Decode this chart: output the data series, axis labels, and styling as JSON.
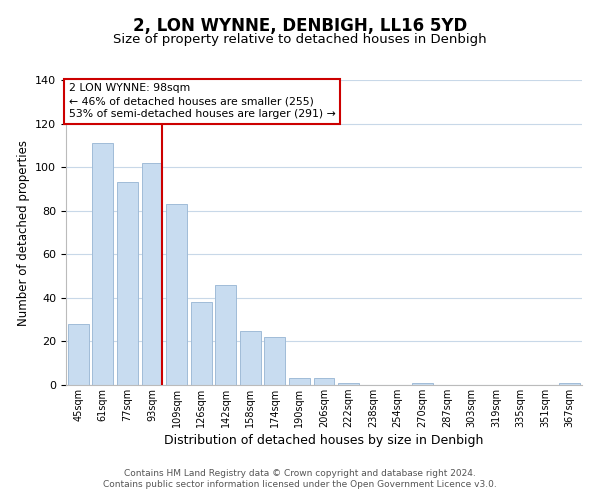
{
  "title": "2, LON WYNNE, DENBIGH, LL16 5YD",
  "subtitle": "Size of property relative to detached houses in Denbigh",
  "xlabel": "Distribution of detached houses by size in Denbigh",
  "ylabel": "Number of detached properties",
  "bar_labels": [
    "45sqm",
    "61sqm",
    "77sqm",
    "93sqm",
    "109sqm",
    "126sqm",
    "142sqm",
    "158sqm",
    "174sqm",
    "190sqm",
    "206sqm",
    "222sqm",
    "238sqm",
    "254sqm",
    "270sqm",
    "287sqm",
    "303sqm",
    "319sqm",
    "335sqm",
    "351sqm",
    "367sqm"
  ],
  "bar_values": [
    28,
    111,
    93,
    102,
    83,
    38,
    46,
    25,
    22,
    3,
    3,
    1,
    0,
    0,
    1,
    0,
    0,
    0,
    0,
    0,
    1
  ],
  "bar_color": "#c8dcf0",
  "bar_edge_color": "#a0bcd8",
  "vline_color": "#cc0000",
  "annotation_box_text": "2 LON WYNNE: 98sqm\n← 46% of detached houses are smaller (255)\n53% of semi-detached houses are larger (291) →",
  "ylim": [
    0,
    140
  ],
  "yticks": [
    0,
    20,
    40,
    60,
    80,
    100,
    120,
    140
  ],
  "footer_line1": "Contains HM Land Registry data © Crown copyright and database right 2024.",
  "footer_line2": "Contains public sector information licensed under the Open Government Licence v3.0.",
  "background_color": "#ffffff",
  "grid_color": "#c8d8e8",
  "title_fontsize": 12,
  "subtitle_fontsize": 9.5,
  "xlabel_fontsize": 9,
  "ylabel_fontsize": 8.5,
  "footer_fontsize": 6.5,
  "tick_fontsize": 7,
  "ytick_fontsize": 8
}
